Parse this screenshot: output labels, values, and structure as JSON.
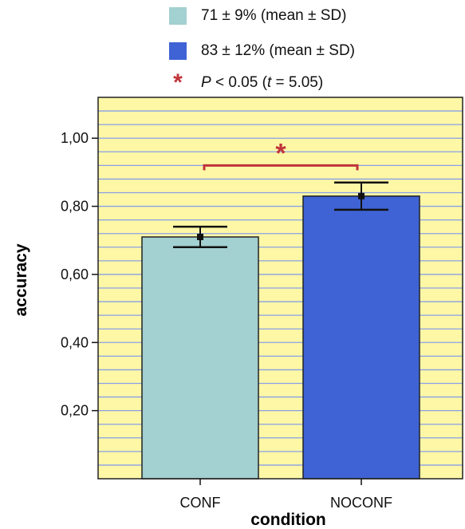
{
  "legend": {
    "items": [
      {
        "label": "71 ± 9% (mean ± SD)",
        "color": "#a3d0d0"
      },
      {
        "label": "83 ± 12% (mean ± SD)",
        "color": "#3f63d4"
      }
    ],
    "significance": {
      "symbol": "*",
      "p_label": "P",
      "p_text": " < 0.05  (",
      "t_label": "t",
      "t_text": " = 5.05)"
    }
  },
  "colors": {
    "plot_background": "#fdf7a6",
    "gridline": "#8aa0e6",
    "significance": "#c0333a",
    "bar_outline": "#222222"
  },
  "chart_data": {
    "type": "bar",
    "categories": [
      "CONF",
      "NOCONF"
    ],
    "values": [
      0.71,
      0.83
    ],
    "error": [
      {
        "low": 0.68,
        "high": 0.74
      },
      {
        "low": 0.79,
        "high": 0.87
      }
    ],
    "xlabel": "condition",
    "ylabel": "accuracy",
    "ylim": [
      0,
      1.12
    ],
    "yticks": [
      0.2,
      0.4,
      0.6,
      0.8,
      1.0
    ],
    "ytick_labels": [
      "0,20",
      "0,40",
      "0,60",
      "0,80",
      "1,00"
    ],
    "grid": true,
    "grid_step": 0.04,
    "significance": {
      "between": [
        "CONF",
        "NOCONF"
      ],
      "marker": "*",
      "level": 0.92
    }
  }
}
